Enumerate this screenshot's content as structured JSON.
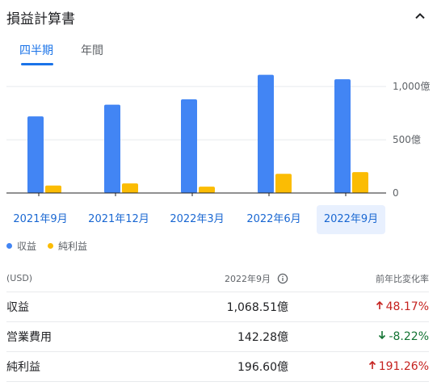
{
  "header": {
    "title": "損益計算書",
    "collapse_icon": "chevron-up-icon"
  },
  "tabs": [
    {
      "label": "四半期",
      "active": true
    },
    {
      "label": "年間",
      "active": false
    }
  ],
  "colors": {
    "revenue": "#4285f4",
    "net_income": "#fbbc04",
    "accent": "#1a73e8",
    "positive": "#c5221f",
    "negative": "#137333"
  },
  "chart_data": {
    "type": "bar",
    "categories": [
      "2021年9月",
      "2021年12月",
      "2022年3月",
      "2022年6月",
      "2022年9月"
    ],
    "selected_category": "2022年9月",
    "series": [
      {
        "name": "収益",
        "values": [
          720,
          830,
          880,
          1110,
          1068.51
        ]
      },
      {
        "name": "純利益",
        "values": [
          70,
          90,
          60,
          180,
          196.6
        ]
      }
    ],
    "ylim": [
      0,
      1100
    ],
    "yticks": [
      0,
      500,
      1000
    ],
    "ytick_labels": [
      "0",
      "500億",
      "1,000億"
    ],
    "grid": true,
    "legend": "bottom-left"
  },
  "table": {
    "header": {
      "currency": "(USD)",
      "period": "2022年9月",
      "change": "前年比変化率",
      "info_icon": "info-icon"
    },
    "rows": [
      {
        "label": "収益",
        "value": "1,068.51億",
        "change": "48.17%",
        "direction": "up"
      },
      {
        "label": "営業費用",
        "value": "142.28億",
        "change": "-8.22%",
        "direction": "down"
      },
      {
        "label": "純利益",
        "value": "196.60億",
        "change": "191.26%",
        "direction": "up"
      }
    ]
  }
}
